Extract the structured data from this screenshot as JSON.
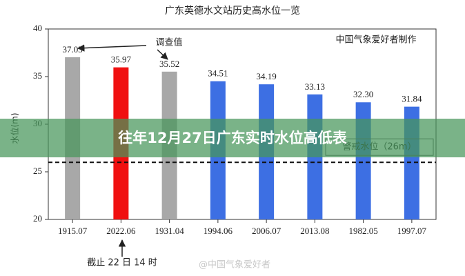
{
  "chart_data": {
    "type": "bar",
    "title": "广东英德水文站历史高水位一览",
    "ylabel": "水位(m)",
    "categories": [
      "1915.07",
      "2022.06",
      "1931.04",
      "1994.06",
      "2006.07",
      "2013.08",
      "1982.05",
      "1997.07"
    ],
    "values": [
      37.03,
      35.97,
      35.52,
      34.51,
      34.19,
      33.13,
      32.3,
      31.84
    ],
    "value_labels": [
      "37.03",
      "35.97",
      "35.52",
      "34.51",
      "34.19",
      "33.13",
      "32.30",
      "31.84"
    ],
    "colors": [
      "#a8a8a8",
      "#f01010",
      "#a8a8a8",
      "#3d6fe3",
      "#3d6fe3",
      "#3d6fe3",
      "#3d6fe3",
      "#3d6fe3"
    ],
    "ylim": [
      20,
      40
    ],
    "yticks": [
      20,
      25,
      30,
      35,
      40
    ],
    "threshold": {
      "value": 26,
      "label": "警戒水位（26m）"
    },
    "annotations": {
      "survey": "调查值",
      "credit": "中国气象爱好者制作",
      "cutoff": "截止 22 日 14 时",
      "watermark": "@中国气象爱好者"
    },
    "banner": "往年12月27日广东实时水位高低表"
  }
}
